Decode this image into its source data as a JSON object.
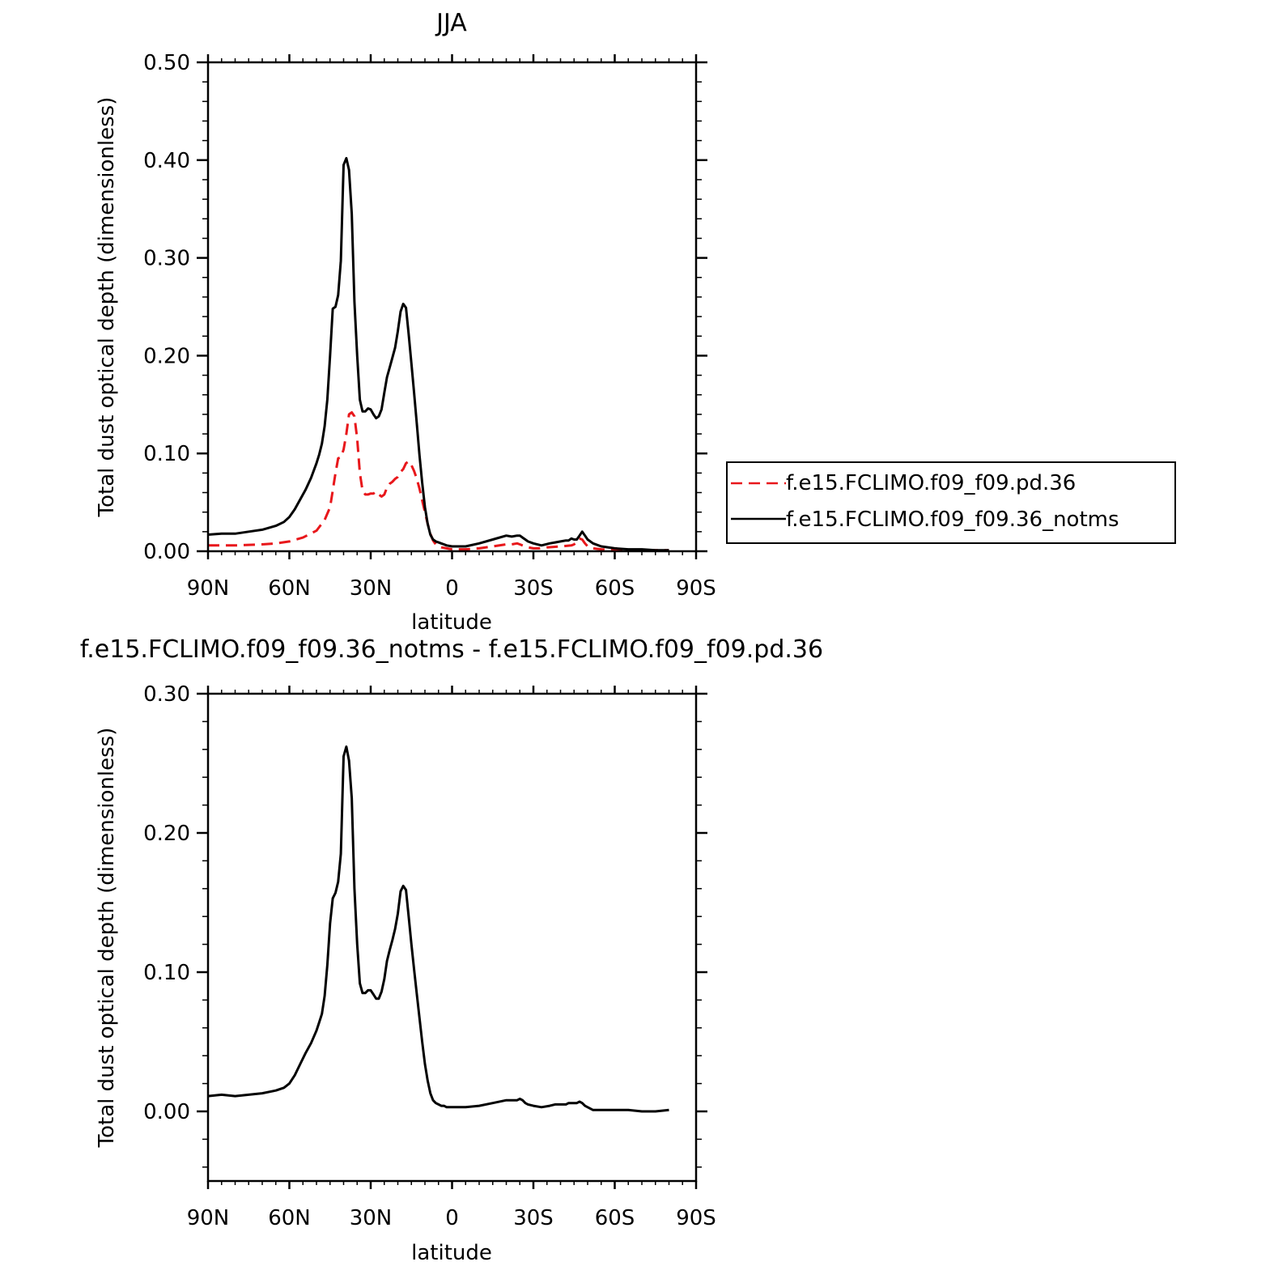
{
  "chart_data": [
    {
      "type": "line",
      "title": "JJA",
      "xlabel": "latitude",
      "ylabel": "Total dust optical depth (dimensionless)",
      "xlim": [
        90,
        -90
      ],
      "ylim": [
        0.0,
        0.5
      ],
      "xticks": [
        90,
        60,
        30,
        0,
        -30,
        -60,
        -90
      ],
      "xtick_labels": [
        "90N",
        "60N",
        "30N",
        "0",
        "30S",
        "60S",
        "90S"
      ],
      "yticks": [
        0.0,
        0.1,
        0.2,
        0.3,
        0.4,
        0.5
      ],
      "ytick_labels": [
        "0.00",
        "0.10",
        "0.20",
        "0.30",
        "0.40",
        "0.50"
      ],
      "grid": false,
      "legend": "right",
      "series": [
        {
          "name": "f.e15.FCLIMO.f09_f09.pd.36",
          "color": "#e8171b",
          "dash": "dashed",
          "x": [
            90,
            80,
            70,
            65,
            60,
            55,
            50,
            47,
            45,
            44,
            43,
            42,
            41,
            40,
            39,
            38,
            37,
            36,
            35,
            34,
            33,
            32,
            31,
            30,
            29,
            28,
            27,
            26,
            25,
            24,
            23,
            22,
            21,
            20,
            19,
            18,
            17,
            16,
            15,
            14,
            13,
            12,
            11,
            10,
            9,
            8,
            7,
            6,
            5,
            4,
            2,
            0,
            -5,
            -10,
            -15,
            -20,
            -22,
            -24,
            -25,
            -26,
            -28,
            -30,
            -32,
            -35,
            -40,
            -44,
            -45,
            -46,
            -47,
            -48,
            -49,
            -50,
            -52,
            -55,
            -60,
            -65,
            -70,
            -75,
            -80
          ],
          "y": [
            0.006,
            0.006,
            0.007,
            0.008,
            0.01,
            0.014,
            0.021,
            0.032,
            0.045,
            0.062,
            0.08,
            0.095,
            0.096,
            0.104,
            0.12,
            0.14,
            0.142,
            0.138,
            0.115,
            0.08,
            0.062,
            0.058,
            0.058,
            0.059,
            0.059,
            0.061,
            0.058,
            0.056,
            0.058,
            0.065,
            0.069,
            0.071,
            0.074,
            0.076,
            0.081,
            0.084,
            0.09,
            0.092,
            0.088,
            0.082,
            0.074,
            0.064,
            0.052,
            0.04,
            0.028,
            0.018,
            0.011,
            0.007,
            0.005,
            0.004,
            0.003,
            0.002,
            0.002,
            0.003,
            0.005,
            0.007,
            0.007,
            0.008,
            0.007,
            0.006,
            0.004,
            0.003,
            0.003,
            0.004,
            0.005,
            0.006,
            0.007,
            0.01,
            0.013,
            0.012,
            0.008,
            0.005,
            0.003,
            0.002,
            0.001,
            0.001,
            0.001,
            0.001,
            0.001
          ]
        },
        {
          "name": "f.e15.FCLIMO.f09_f09.36_notms",
          "color": "#000000",
          "dash": "solid",
          "x": [
            90,
            85,
            80,
            75,
            70,
            65,
            62,
            60,
            58,
            56,
            54,
            52,
            50,
            49,
            48,
            47,
            46,
            45,
            44,
            43,
            42,
            41,
            40,
            39,
            38,
            37,
            36,
            35,
            34,
            33,
            32,
            31,
            30,
            29,
            28,
            27,
            26,
            25,
            24,
            23,
            22,
            21,
            20,
            19,
            18,
            17,
            16,
            15,
            14,
            13,
            12,
            11,
            10,
            9,
            8,
            7,
            6,
            5,
            4,
            3,
            2,
            0,
            -2,
            -5,
            -10,
            -15,
            -20,
            -22,
            -24,
            -25,
            -26,
            -27,
            -28,
            -30,
            -33,
            -36,
            -38,
            -40,
            -42,
            -43,
            -44,
            -45,
            -46,
            -47,
            -48,
            -49,
            -50,
            -52,
            -55,
            -60,
            -65,
            -70,
            -75,
            -80
          ],
          "y": [
            0.017,
            0.018,
            0.018,
            0.02,
            0.022,
            0.026,
            0.03,
            0.035,
            0.043,
            0.053,
            0.063,
            0.075,
            0.09,
            0.099,
            0.11,
            0.128,
            0.155,
            0.2,
            0.248,
            0.25,
            0.262,
            0.297,
            0.395,
            0.402,
            0.39,
            0.345,
            0.255,
            0.2,
            0.155,
            0.143,
            0.143,
            0.146,
            0.145,
            0.14,
            0.136,
            0.138,
            0.145,
            0.162,
            0.178,
            0.188,
            0.198,
            0.208,
            0.225,
            0.245,
            0.253,
            0.249,
            0.222,
            0.192,
            0.162,
            0.13,
            0.098,
            0.07,
            0.045,
            0.028,
            0.017,
            0.012,
            0.01,
            0.009,
            0.008,
            0.007,
            0.006,
            0.005,
            0.005,
            0.005,
            0.008,
            0.012,
            0.016,
            0.015,
            0.016,
            0.016,
            0.014,
            0.012,
            0.01,
            0.008,
            0.006,
            0.008,
            0.009,
            0.01,
            0.011,
            0.011,
            0.013,
            0.012,
            0.012,
            0.016,
            0.02,
            0.016,
            0.012,
            0.008,
            0.005,
            0.003,
            0.002,
            0.002,
            0.001,
            0.001
          ]
        }
      ]
    },
    {
      "type": "line",
      "title": "f.e15.FCLIMO.f09_f09.36_notms - f.e15.FCLIMO.f09_f09.pd.36",
      "xlabel": "latitude",
      "ylabel": "Total dust optical depth (dimensionless)",
      "xlim": [
        90,
        -90
      ],
      "ylim": [
        -0.05,
        0.3
      ],
      "xticks": [
        90,
        60,
        30,
        0,
        -30,
        -60,
        -90
      ],
      "xtick_labels": [
        "90N",
        "60N",
        "30N",
        "0",
        "30S",
        "60S",
        "90S"
      ],
      "yticks": [
        0.0,
        0.1,
        0.2,
        0.3
      ],
      "ytick_labels": [
        "0.00",
        "0.10",
        "0.20",
        "0.30"
      ],
      "grid": false,
      "series": [
        {
          "color": "#000000",
          "dash": "solid",
          "x": [
            90,
            85,
            80,
            75,
            70,
            65,
            62,
            60,
            58,
            56,
            54,
            52,
            50,
            49,
            48,
            47,
            46,
            45,
            44,
            43,
            42,
            41,
            40,
            39,
            38,
            37,
            36,
            35,
            34,
            33,
            32,
            31,
            30,
            29,
            28,
            27,
            26,
            25,
            24,
            23,
            22,
            21,
            20,
            19,
            18,
            17,
            16,
            15,
            14,
            13,
            12,
            11,
            10,
            9,
            8,
            7,
            6,
            5,
            4,
            3,
            2,
            0,
            -2,
            -5,
            -10,
            -15,
            -20,
            -22,
            -24,
            -25,
            -26,
            -27,
            -28,
            -30,
            -33,
            -36,
            -38,
            -40,
            -42,
            -43,
            -44,
            -45,
            -46,
            -47,
            -48,
            -49,
            -50,
            -52,
            -55,
            -60,
            -65,
            -70,
            -75,
            -80
          ],
          "y": [
            0.011,
            0.012,
            0.011,
            0.012,
            0.013,
            0.015,
            0.017,
            0.02,
            0.026,
            0.034,
            0.042,
            0.049,
            0.058,
            0.064,
            0.07,
            0.083,
            0.105,
            0.135,
            0.153,
            0.157,
            0.165,
            0.185,
            0.255,
            0.262,
            0.252,
            0.225,
            0.16,
            0.12,
            0.092,
            0.085,
            0.085,
            0.087,
            0.087,
            0.084,
            0.081,
            0.081,
            0.086,
            0.095,
            0.108,
            0.116,
            0.123,
            0.131,
            0.142,
            0.158,
            0.162,
            0.159,
            0.14,
            0.12,
            0.102,
            0.084,
            0.067,
            0.05,
            0.034,
            0.022,
            0.013,
            0.008,
            0.006,
            0.005,
            0.004,
            0.004,
            0.003,
            0.003,
            0.003,
            0.003,
            0.004,
            0.006,
            0.008,
            0.008,
            0.008,
            0.009,
            0.008,
            0.006,
            0.005,
            0.004,
            0.003,
            0.004,
            0.005,
            0.005,
            0.005,
            0.006,
            0.006,
            0.006,
            0.006,
            0.007,
            0.006,
            0.004,
            0.003,
            0.001,
            0.001,
            0.001,
            0.001,
            0.0,
            0.0,
            0.001
          ]
        }
      ]
    }
  ]
}
